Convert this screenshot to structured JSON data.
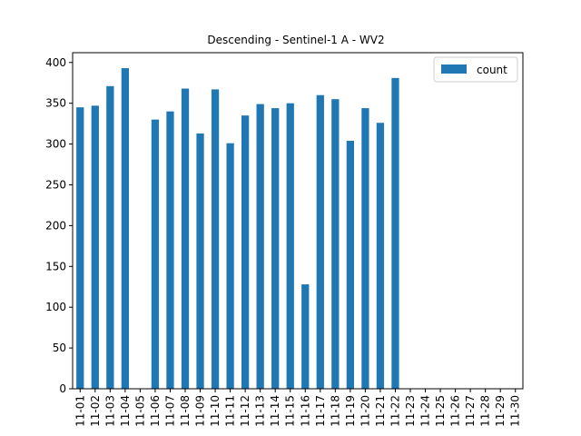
{
  "chart_data": {
    "type": "bar",
    "title": "Descending - Sentinel-1 A - WV2",
    "xlabel": "",
    "ylabel": "",
    "categories": [
      "11-01",
      "11-02",
      "11-03",
      "11-04",
      "11-05",
      "11-06",
      "11-07",
      "11-08",
      "11-09",
      "11-10",
      "11-11",
      "11-12",
      "11-13",
      "11-14",
      "11-15",
      "11-16",
      "11-17",
      "11-18",
      "11-19",
      "11-20",
      "11-21",
      "11-22",
      "11-23",
      "11-24",
      "11-25",
      "11-26",
      "11-27",
      "11-28",
      "11-29",
      "11-30"
    ],
    "series": [
      {
        "name": "count",
        "color": "#1f77b4",
        "values": [
          345,
          347,
          371,
          393,
          0,
          330,
          340,
          368,
          313,
          367,
          301,
          335,
          349,
          344,
          350,
          128,
          360,
          355,
          304,
          344,
          326,
          381,
          0,
          0,
          0,
          0,
          0,
          0,
          0,
          0
        ]
      }
    ],
    "ylim": [
      0,
      412
    ],
    "yticks": [
      0,
      50,
      100,
      150,
      200,
      250,
      300,
      350,
      400
    ],
    "grid": false,
    "legend": "top-right"
  }
}
